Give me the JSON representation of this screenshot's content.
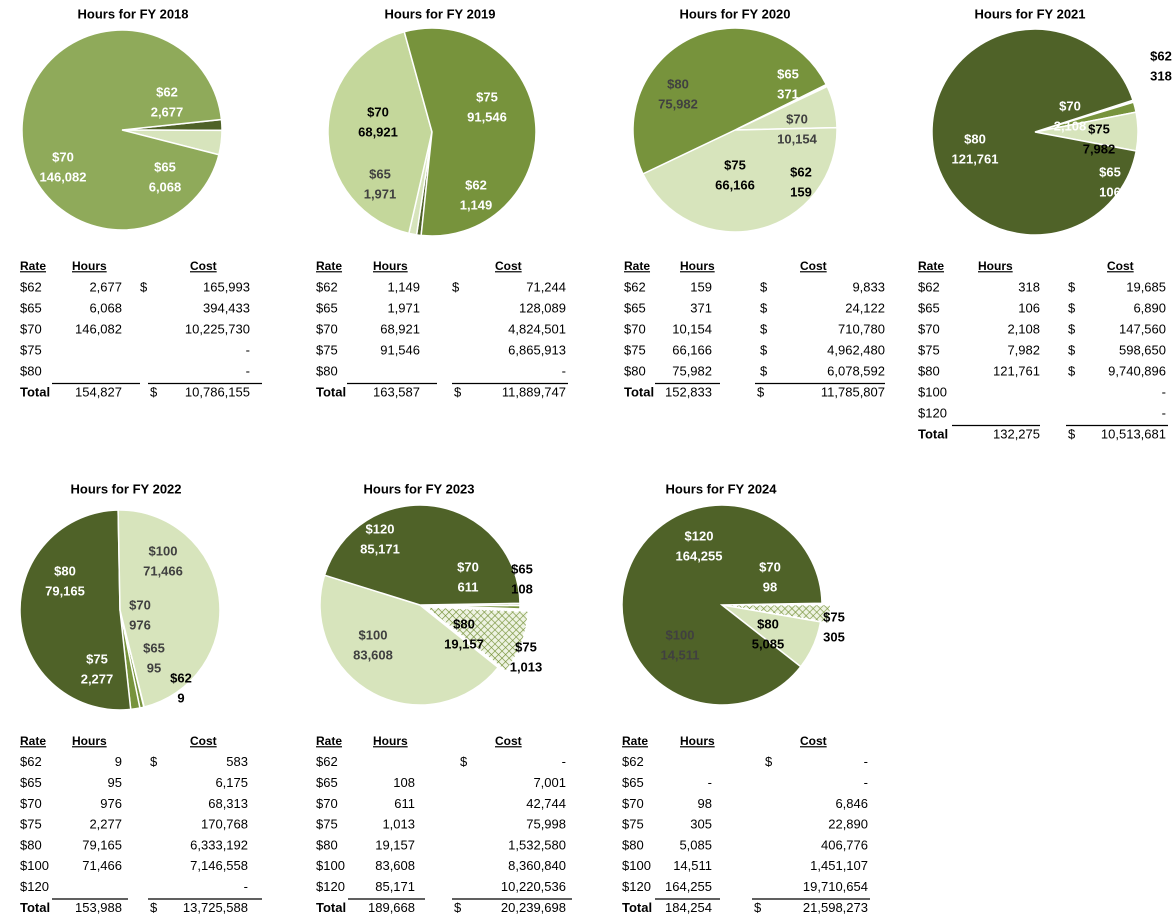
{
  "chart_data": [
    {
      "type": "pie",
      "title": "Hours for FY 2018",
      "categories": [
        "$62",
        "$65",
        "$70"
      ],
      "values": [
        2677,
        6068,
        146082
      ],
      "value_labels": [
        "2,677",
        "6,068",
        "146,082"
      ],
      "colors": [
        "#4f6228",
        "#d7e4bc",
        "#8faa5a"
      ],
      "table": {
        "header": [
          "Rate",
          "Hours",
          "Cost"
        ],
        "rows": [
          [
            "$62",
            "2,677",
            "$",
            "165,993"
          ],
          [
            "$65",
            "6,068",
            null,
            "394,433"
          ],
          [
            "$70",
            "146,082",
            null,
            "10,225,730"
          ],
          [
            "$75",
            null,
            null,
            "-"
          ],
          [
            "$80",
            null,
            null,
            "-"
          ]
        ],
        "total": [
          "Total",
          "154,827",
          "$",
          "10,786,155"
        ]
      }
    },
    {
      "type": "pie",
      "title": "Hours for FY 2019",
      "categories": [
        "$62",
        "$65",
        "$70",
        "$75"
      ],
      "values": [
        1149,
        1971,
        68921,
        91546
      ],
      "value_labels": [
        "1,149",
        "1,971",
        "68,921",
        "91,546"
      ],
      "colors": [
        "#4f6228",
        "#d7e4bc",
        "#c4d79b",
        "#77933c"
      ],
      "table": {
        "header": [
          "Rate",
          "Hours",
          "Cost"
        ],
        "rows": [
          [
            "$62",
            "1,149",
            "$",
            "71,244"
          ],
          [
            "$65",
            "1,971",
            null,
            "128,089"
          ],
          [
            "$70",
            "68,921",
            null,
            "4,824,501"
          ],
          [
            "$75",
            "91,546",
            null,
            "6,865,913"
          ],
          [
            "$80",
            null,
            null,
            "-"
          ]
        ],
        "total": [
          "Total",
          "163,587",
          "$",
          "11,889,747"
        ]
      }
    },
    {
      "type": "pie",
      "title": "Hours for FY 2020",
      "categories": [
        "$62",
        "$65",
        "$70",
        "$75",
        "$80"
      ],
      "values": [
        159,
        371,
        10154,
        66166,
        75982
      ],
      "value_labels": [
        "159",
        "371",
        "10,154",
        "66,166",
        "75,982"
      ],
      "colors": [
        "#4f6228",
        "#4f6228",
        "#d7e4bc",
        "#d7e4bc",
        "#77933c"
      ],
      "table": {
        "header": [
          "Rate",
          "Hours",
          "Cost"
        ],
        "rows": [
          [
            "$62",
            "159",
            "$",
            "9,833"
          ],
          [
            "$65",
            "371",
            "$",
            "24,122"
          ],
          [
            "$70",
            "10,154",
            "$",
            "710,780"
          ],
          [
            "$75",
            "66,166",
            "$",
            "4,962,480"
          ],
          [
            "$80",
            "75,982",
            "$",
            "6,078,592"
          ]
        ],
        "total": [
          "Total",
          "152,833",
          "$",
          "11,785,807"
        ]
      }
    },
    {
      "type": "pie",
      "title": "Hours for FY 2021",
      "categories": [
        "$62",
        "$65",
        "$70",
        "$75",
        "$80"
      ],
      "values": [
        318,
        106,
        2108,
        7982,
        121761
      ],
      "value_labels": [
        "318",
        "106",
        "2,108",
        "7,982",
        "121,761"
      ],
      "colors": [
        "#77933c",
        "#77933c",
        "#77933c",
        "#d7e4bc",
        "#4f6228"
      ],
      "table": {
        "header": [
          "Rate",
          "Hours",
          "Cost"
        ],
        "rows": [
          [
            "$62",
            "318",
            "$",
            "19,685"
          ],
          [
            "$65",
            "106",
            "$",
            "6,890"
          ],
          [
            "$70",
            "2,108",
            "$",
            "147,560"
          ],
          [
            "$75",
            "7,982",
            "$",
            "598,650"
          ],
          [
            "$80",
            "121,761",
            "$",
            "9,740,896"
          ],
          [
            "$100",
            null,
            null,
            "-"
          ],
          [
            "$120",
            null,
            null,
            "-"
          ]
        ],
        "total": [
          "Total",
          "132,275",
          "$",
          "10,513,681"
        ]
      }
    },
    {
      "type": "pie",
      "title": "Hours for FY 2022",
      "categories": [
        "$62",
        "$65",
        "$70",
        "$75",
        "$80",
        "$100"
      ],
      "values": [
        9,
        95,
        976,
        2277,
        79165,
        71466
      ],
      "value_labels": [
        "9",
        "95",
        "976",
        "2,277",
        "79,165",
        "71,466"
      ],
      "colors": [
        "#4f6228",
        "#77933c",
        "#77933c",
        "#77933c",
        "#4f6228",
        "#d7e4bc"
      ],
      "table": {
        "header": [
          "Rate",
          "Hours",
          "Cost"
        ],
        "rows": [
          [
            "$62",
            "9",
            "$",
            "583"
          ],
          [
            "$65",
            "95",
            null,
            "6,175"
          ],
          [
            "$70",
            "976",
            null,
            "68,313"
          ],
          [
            "$75",
            "2,277",
            null,
            "170,768"
          ],
          [
            "$80",
            "79,165",
            null,
            "6,333,192"
          ],
          [
            "$100",
            "71,466",
            null,
            "7,146,558"
          ],
          [
            "$120",
            null,
            null,
            "-"
          ]
        ],
        "total": [
          "Total",
          "153,988",
          "$",
          "13,725,588"
        ]
      }
    },
    {
      "type": "pie",
      "title": "Hours for FY 2023",
      "categories": [
        "$65",
        "$70",
        "$75",
        "$80",
        "$100",
        "$120"
      ],
      "values": [
        108,
        611,
        1013,
        19157,
        83608,
        85171
      ],
      "value_labels": [
        "108",
        "611",
        "1,013",
        "19,157",
        "83,608",
        "85,171"
      ],
      "colors": [
        "#4f6228",
        "#77933c",
        "#77933c",
        "#eef3e2",
        "#d7e4bc",
        "#4f6228"
      ],
      "table": {
        "header": [
          "Rate",
          "Hours",
          "Cost"
        ],
        "rows": [
          [
            "$62",
            null,
            "$",
            "-"
          ],
          [
            "$65",
            "108",
            null,
            "7,001"
          ],
          [
            "$70",
            "611",
            null,
            "42,744"
          ],
          [
            "$75",
            "1,013",
            null,
            "75,998"
          ],
          [
            "$80",
            "19,157",
            null,
            "1,532,580"
          ],
          [
            "$100",
            "83,608",
            null,
            "8,360,840"
          ],
          [
            "$120",
            "85,171",
            null,
            "10,220,536"
          ]
        ],
        "total": [
          "Total",
          "189,668",
          "$",
          "20,239,698"
        ]
      }
    },
    {
      "type": "pie",
      "title": "Hours for FY 2024",
      "categories": [
        "$70",
        "$75",
        "$80",
        "$100",
        "$120"
      ],
      "values": [
        98,
        305,
        5085,
        14511,
        164255
      ],
      "value_labels": [
        "98",
        "305",
        "5,085",
        "14,511",
        "164,255"
      ],
      "colors": [
        "#77933c",
        "#77933c",
        "#eef3e2",
        "#d7e4bc",
        "#4f6228"
      ],
      "table": {
        "header": [
          "Rate",
          "Hours",
          "Cost"
        ],
        "rows": [
          [
            "$62",
            null,
            "$",
            "-"
          ],
          [
            "$65",
            "-",
            null,
            "-"
          ],
          [
            "$70",
            "98",
            null,
            "6,846"
          ],
          [
            "$75",
            "305",
            null,
            "22,890"
          ],
          [
            "$80",
            "5,085",
            null,
            "406,776"
          ],
          [
            "$100",
            "14,511",
            null,
            "1,451,107"
          ],
          [
            "$120",
            "164,255",
            null,
            "19,710,654"
          ]
        ],
        "total": [
          "Total",
          "184,254",
          "$",
          "21,598,273"
        ]
      }
    }
  ]
}
